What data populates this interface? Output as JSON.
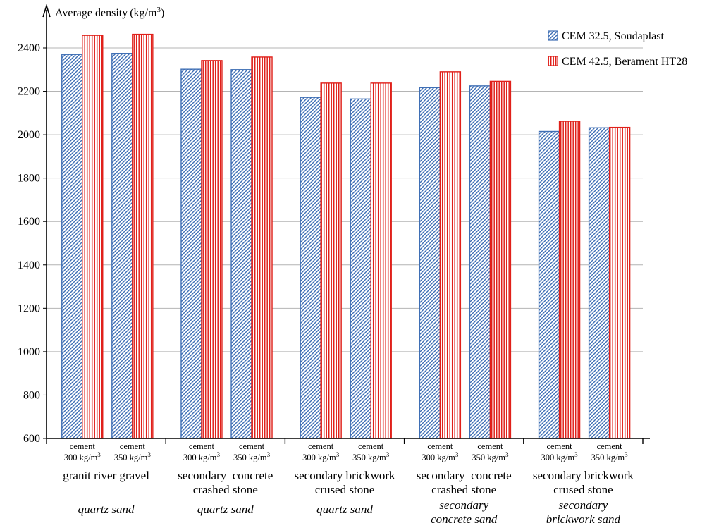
{
  "chart_data": {
    "type": "bar",
    "ylabel": "Average density",
    "yunit": "(kg/m",
    "yunit_sup": "3",
    "yunit_close": ")",
    "ylim": [
      600,
      2500
    ],
    "yticks": [
      600,
      800,
      1000,
      1200,
      1400,
      1600,
      1800,
      2000,
      2200,
      2400
    ],
    "grid": true,
    "legend_position": "top-right",
    "categories": [
      {
        "line1": "cement",
        "line2": "300 kg/m",
        "sup": "3"
      },
      {
        "line1": "cement",
        "line2": "350 kg/m",
        "sup": "3"
      },
      {
        "line1": "cement",
        "line2": "300 kg/m",
        "sup": "3"
      },
      {
        "line1": "cement",
        "line2": "350 kg/m",
        "sup": "3"
      },
      {
        "line1": "cement",
        "line2": "300 kg/m",
        "sup": "3"
      },
      {
        "line1": "cement",
        "line2": "350 kg/m",
        "sup": "3"
      },
      {
        "line1": "cement",
        "line2": "300 kg/m",
        "sup": "3"
      },
      {
        "line1": "cement",
        "line2": "350 kg/m",
        "sup": "3"
      },
      {
        "line1": "cement",
        "line2": "300 kg/m",
        "sup": "3"
      },
      {
        "line1": "cement",
        "line2": "350 kg/m",
        "sup": "3"
      }
    ],
    "groups": [
      {
        "main": [
          "granit river gravel"
        ],
        "sub": [
          "quartz sand"
        ]
      },
      {
        "main": [
          "secondary  concrete",
          "crashed stone"
        ],
        "sub": [
          "quartz sand"
        ]
      },
      {
        "main": [
          "secondary brickwork",
          "crused stone"
        ],
        "sub": [
          "quartz sand"
        ]
      },
      {
        "main": [
          "secondary  concrete",
          "crashed stone"
        ],
        "sub": [
          "secondary",
          "concrete sand"
        ]
      },
      {
        "main": [
          "secondary brickwork",
          "crused stone"
        ],
        "sub": [
          "secondary",
          "brickwork sand"
        ]
      }
    ],
    "series": [
      {
        "name": "CEM 32.5, Soudaplast",
        "color": "#3f6fb5",
        "pattern": "diagonal-hatch",
        "values": [
          2370,
          2375,
          2302,
          2300,
          2172,
          2165,
          2217,
          2225,
          2015,
          2032
        ]
      },
      {
        "name": "CEM 42.5, Berament HT28",
        "color": "#e0201a",
        "pattern": "vertical-lines",
        "values": [
          2458,
          2463,
          2342,
          2358,
          2238,
          2238,
          2290,
          2246,
          2062,
          2034
        ]
      }
    ]
  }
}
